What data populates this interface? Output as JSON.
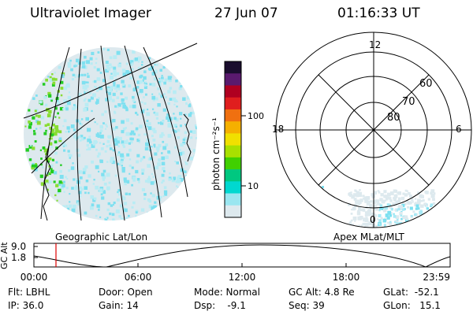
{
  "header": {
    "title": "Ultraviolet Imager",
    "date": "27 Jun 07",
    "time": "01:16:33 UT"
  },
  "colorbar": {
    "unit_label": "photon cm⁻²s⁻¹",
    "ticks": [
      "100",
      "10"
    ],
    "colors": [
      "#1a0d2e",
      "#5a1a6e",
      "#b00020",
      "#e01e1e",
      "#f07010",
      "#f5b000",
      "#f0e000",
      "#a8e000",
      "#40d000",
      "#00c880",
      "#00d8d0",
      "#9ae6f0",
      "#dde9ee"
    ]
  },
  "geo_panel": {
    "label": "Geographic Lat/Lon",
    "colors": {
      "aurora": "#22cc22",
      "glow": "#7ee0f0",
      "grid": "#000000"
    }
  },
  "polar": {
    "label": "Apex MLat/MLT",
    "mlt_labels": [
      "12",
      "18",
      "6",
      "0"
    ],
    "lat_labels": [
      "60",
      "70",
      "80"
    ]
  },
  "timeline": {
    "ylabel": "GC Alt",
    "y_ticks": [
      "9.0",
      "1.8"
    ],
    "x_ticks": [
      "00:00",
      "06:00",
      "12:00",
      "18:00",
      "23:59"
    ],
    "current_time_fraction": 0.053,
    "cursor_color": "#dd0000"
  },
  "info": {
    "filter": "Flt: LBHL",
    "ip": "IP: 36.0",
    "door": "Door: Open",
    "gain": "Gain: 14",
    "mode": "Mode: Normal",
    "dsp": "Dsp:    -9.1",
    "gc_alt": "GC Alt: 4.8 Re",
    "seq": "Seq: 39",
    "glat": "GLat:  -52.1",
    "glon": "GLon:   15.1"
  }
}
